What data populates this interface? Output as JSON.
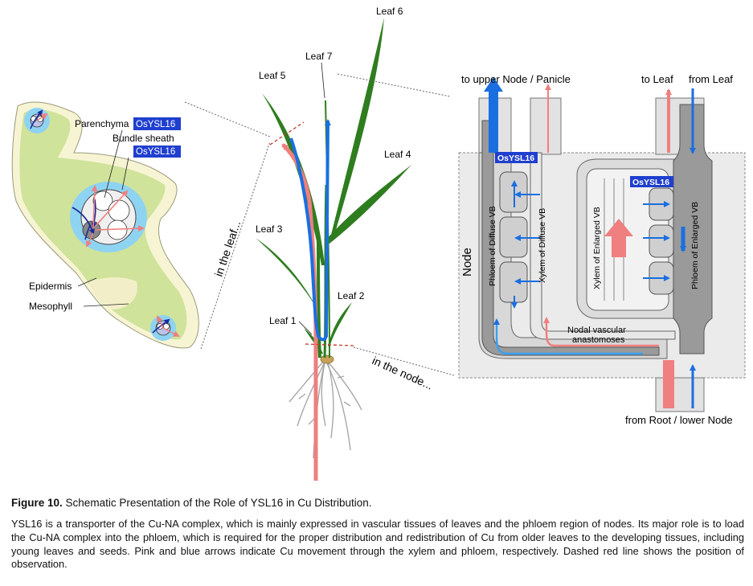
{
  "leaf_panel": {
    "label_parenchyma": "Parenchyma",
    "label_bundle_sheath_1": "Bundle sheath",
    "label_bundle_sheath_2": "OsYSL16",
    "badge_parenchyma": "OsYSL16",
    "label_epidermis": "Epidermis",
    "label_mesophyll": "Mesophyll",
    "in_the_leaf": "in the leaf..."
  },
  "plant_panel": {
    "leaf1": "Leaf 1",
    "leaf2": "Leaf 2",
    "leaf3": "Leaf 3",
    "leaf4": "Leaf 4",
    "leaf5": "Leaf 5",
    "leaf6": "Leaf 6",
    "leaf7": "Leaf 7",
    "in_the_node": "in the node..."
  },
  "node_panel": {
    "to_upper": "to upper Node / Panicle",
    "to_leaf": "to Leaf",
    "from_leaf": "from Leaf",
    "from_root": "from Root / lower Node",
    "node_label": "Node",
    "badge_left": "OsYSL16",
    "badge_right": "OsYSL16",
    "phloem_diffuse": "Phloem of Diffuse VB",
    "xylem_diffuse": "Xylem of Diffuse VB",
    "xylem_enlarged": "Xylem of Enlarged VB",
    "phloem_enlarged": "Phloem of Enlarged VB",
    "nodal_1": "Nodal vascular",
    "nodal_2": "anastomoses"
  },
  "colors": {
    "xylem_arrow": "#f07f7f",
    "phloem_arrow": "#1a6fe0",
    "badge": "#1f3fcf",
    "leaf_green": "#2e7d1f",
    "mesophyll": "#cfe39a"
  },
  "caption": {
    "label": "Figure 10.",
    "title": "Schematic Presentation of the Role of YSL16 in Cu Distribution.",
    "body": "YSL16 is a transporter of the Cu-NA complex, which is mainly expressed in vascular tissues of leaves and the phloem region of nodes. Its major role is to load the Cu-NA complex into the phloem, which is required for the proper distribution and redistribution of Cu from older leaves to the developing tissues, including young leaves and seeds. Pink and blue arrows indicate Cu movement through the xylem and phloem, respectively. Dashed red line shows the position of observation."
  }
}
